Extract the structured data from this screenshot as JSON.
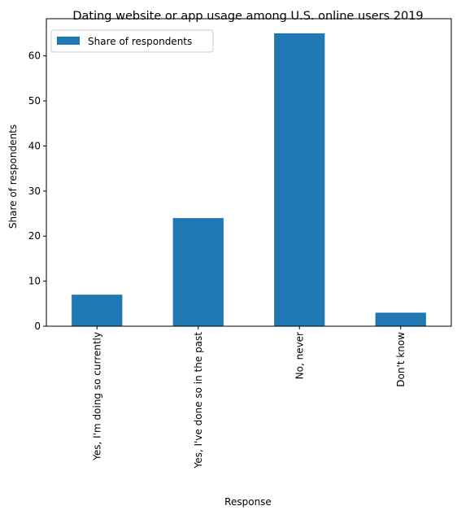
{
  "chart_data": {
    "type": "bar",
    "title": "Dating website or app usage among U.S. online users 2019",
    "xlabel": "Response",
    "ylabel": "Share of respondents",
    "categories": [
      "Yes, I'm doing so currently",
      "Yes, I've done so in the past",
      "No, never",
      "Don't know"
    ],
    "series": [
      {
        "name": "Share of respondents",
        "values": [
          7,
          24,
          65,
          3
        ]
      }
    ],
    "ylim": [
      0,
      68.25
    ],
    "yticks": [
      0,
      10,
      20,
      30,
      40,
      50,
      60
    ],
    "grid": false,
    "legend_position": "upper-left",
    "colors": {
      "bar": "#1f77b4"
    }
  }
}
